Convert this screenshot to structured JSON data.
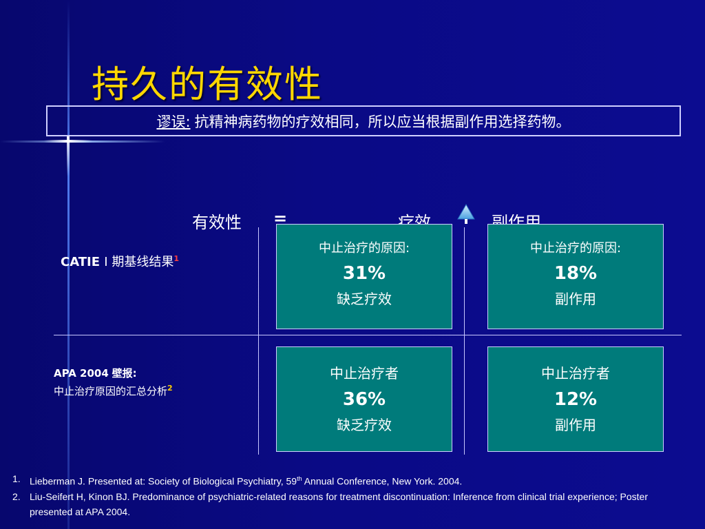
{
  "slide": {
    "title": "持久的有效性",
    "myth": {
      "label": "谬误:",
      "text": "抗精神病药物的疗效相同，所以应当根据副作用选择药物。"
    },
    "equation": {
      "lhs": "有效性",
      "op1": "=",
      "term1": "疗效",
      "term2": "副作用"
    },
    "rows": [
      {
        "label_main": "CATIE",
        "label_cn": "Ⅰ 期基线结果",
        "ref": "1"
      },
      {
        "label_line1": "APA 2004",
        "label_line1_cn": "壁报:",
        "label_line2": "中止治疗原因的汇总分析",
        "ref": "2"
      }
    ],
    "cells": [
      {
        "line1": "中止治疗的原因:",
        "value": "31%",
        "line3": "缺乏疗效"
      },
      {
        "line1": "中止治疗的原因:",
        "value": "18%",
        "line3": "副作用"
      },
      {
        "line1": "中止治疗者",
        "value": "36%",
        "line3": "缺乏疗效"
      },
      {
        "line1": "中止治疗者",
        "value": "12%",
        "line3": "副作用"
      }
    ],
    "references": [
      {
        "num": "1.",
        "pre": "Lieberman J. Presented at: Society of Biological Psychiatry, 59",
        "sup": "th",
        "post": " Annual Conference, New York. 2004."
      },
      {
        "num": "2.",
        "text": "Liu-Seifert H, Kinon BJ. Predominance of psychiatric-related reasons for treatment discontinuation: Inference from clinical trial experience; Poster presented at APA 2004."
      }
    ],
    "colors": {
      "background": "#0b0b8e",
      "title": "#ffd700",
      "cell": "#007b7b",
      "ref1": "#ff4040",
      "ref2": "#ffcc00"
    }
  }
}
